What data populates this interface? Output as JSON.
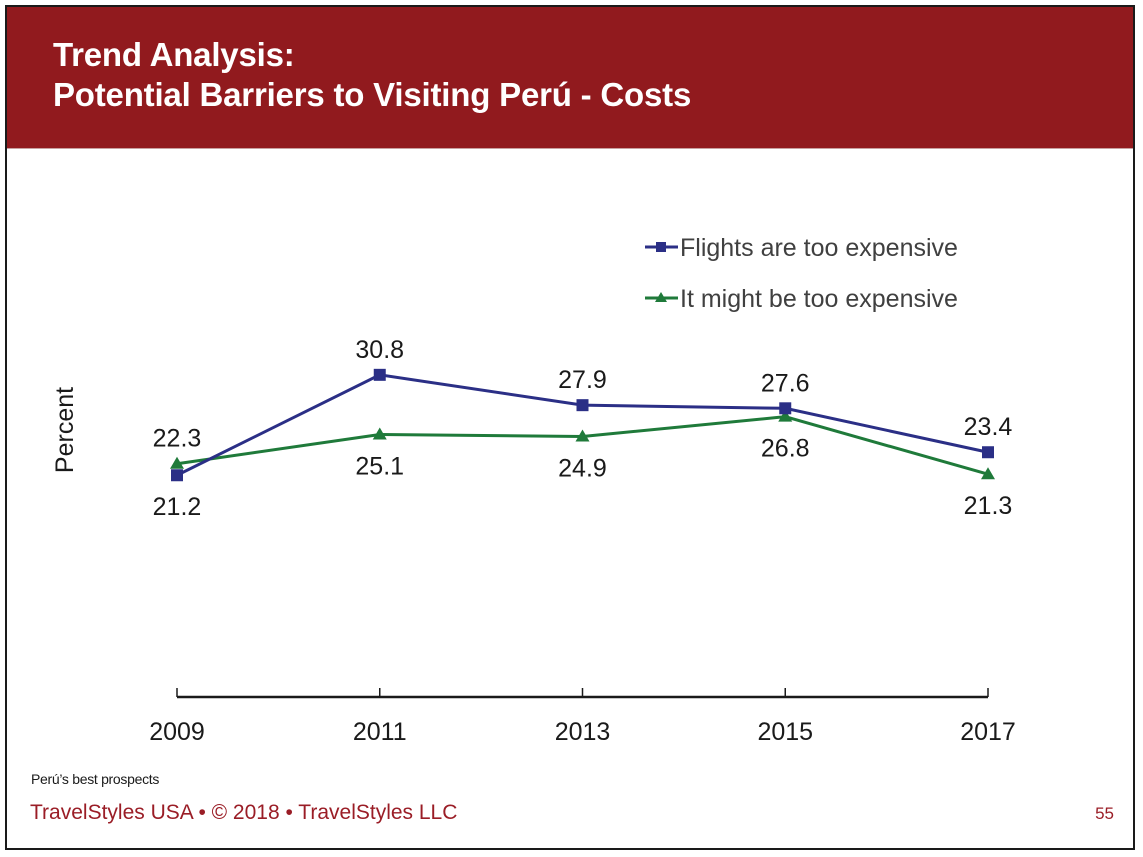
{
  "slide": {
    "title_line1": "Trend Analysis:",
    "title_line2": "Potential Barriers to Visiting Perú - Costs",
    "footer_note": "Perú’s best prospects",
    "footer_copyright": "TravelStyles USA • © 2018 • TravelStyles LLC",
    "page_number": "55",
    "colors": {
      "header_bg": "#911a1e",
      "footer_text": "#9a1d26"
    }
  },
  "chart_data": {
    "type": "line",
    "title": "Trend Analysis: Potential Barriers to Visiting Perú - Costs",
    "xlabel": "",
    "ylabel": "Percent",
    "categories": [
      "2009",
      "2011",
      "2013",
      "2015",
      "2017"
    ],
    "ylim": [
      0,
      35
    ],
    "grid": false,
    "legend_position": "top-right",
    "series": [
      {
        "name": "Flights are too expensive",
        "marker": "square",
        "color": "#2b2f86",
        "values": [
          21.2,
          30.8,
          27.9,
          27.6,
          23.4
        ],
        "labels": [
          "21.2",
          "30.8",
          "27.9",
          "27.6",
          "23.4"
        ],
        "label_positions": [
          "below",
          "above",
          "above",
          "above",
          "above"
        ]
      },
      {
        "name": "It might be too expensive",
        "marker": "triangle",
        "color": "#1f7a3a",
        "values": [
          22.3,
          25.1,
          24.9,
          26.8,
          21.3
        ],
        "labels": [
          "22.3",
          "25.1",
          "24.9",
          "26.8",
          "21.3"
        ],
        "label_positions": [
          "above",
          "below",
          "below",
          "below",
          "below"
        ]
      }
    ]
  }
}
